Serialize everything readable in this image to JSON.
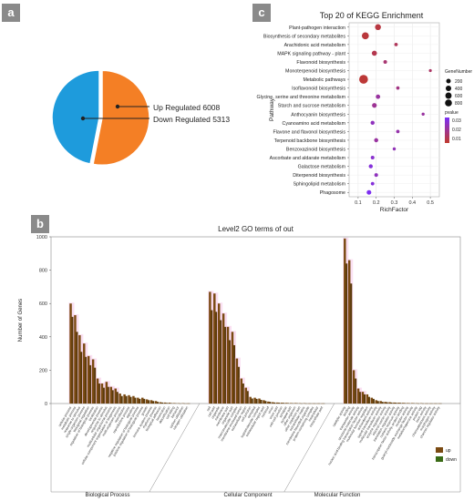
{
  "panels": {
    "a": "a",
    "b": "b",
    "c": "c"
  },
  "colors": {
    "up": "#f47f25",
    "down": "#1e9bdc",
    "bar_up": "#7a4a12",
    "bar_down": "#3a6b16",
    "pvalue_high": "#c0392b",
    "pvalue_low": "#7b2ff7"
  },
  "chart_data": [
    {
      "type": "pie",
      "panel": "a",
      "labels": [
        "Up Regulated",
        "Down Regulated"
      ],
      "values": [
        6008,
        5313
      ],
      "label_texts": [
        "Up Regulated 6008",
        "Down Regulated 5313"
      ],
      "colors": [
        "#f47f25",
        "#1e9bdc"
      ]
    },
    {
      "type": "scatter",
      "panel": "c",
      "title": "Top 20 of KEGG Enrichment",
      "xlabel": "RichFactor",
      "ylabel": "Pathway",
      "xlim": [
        0.05,
        0.55
      ],
      "xticks": [
        0.1,
        0.2,
        0.3,
        0.4,
        0.5
      ],
      "grid": true,
      "legend_size_title": "GeneNumber",
      "legend_size_values": [
        200,
        400,
        600,
        800
      ],
      "legend_color_title": "pvalue",
      "legend_color_ticks": [
        "0.03",
        "0.02",
        "0.01"
      ],
      "categories": [
        "Plant-pathogen interaction",
        "Biosynthesis of secondary metabolites",
        "Arachidonic acid metabolism",
        "MAPK signaling pathway - plant",
        "Flavonoid biosynthesis",
        "Monoterpenoid biosynthesis",
        "Metabolic pathways",
        "Isoflavonoid biosynthesis",
        "Glycine, serine and threonine metabolism",
        "Starch and sucrose metabolism",
        "Anthocyanin biosynthesis",
        "Cyanoamino acid metabolism",
        "Flavone and flavonol biosynthesis",
        "Terpenoid backbone biosynthesis",
        "Benzoxazinoid biosynthesis",
        "Ascorbate and aldarate metabolism",
        "Galactose metabolism",
        "Diterpenoid biosynthesis",
        "Sphingolipid metabolism",
        "Phagosome"
      ],
      "richfactor": [
        0.21,
        0.14,
        0.31,
        0.19,
        0.25,
        0.5,
        0.13,
        0.32,
        0.21,
        0.19,
        0.46,
        0.18,
        0.32,
        0.2,
        0.3,
        0.18,
        0.17,
        0.2,
        0.18,
        0.16
      ],
      "genenumber": [
        260,
        420,
        30,
        160,
        40,
        10,
        800,
        25,
        90,
        120,
        15,
        60,
        30,
        70,
        15,
        40,
        60,
        40,
        30,
        110
      ],
      "pvalue": [
        0.004,
        0.003,
        0.008,
        0.006,
        0.012,
        0.01,
        0.002,
        0.015,
        0.02,
        0.018,
        0.02,
        0.025,
        0.022,
        0.02,
        0.024,
        0.028,
        0.03,
        0.025,
        0.03,
        0.034
      ]
    },
    {
      "type": "bar",
      "panel": "b",
      "title": "Level2 GO terms of out",
      "ylabel": "Number of Genes",
      "ylim": [
        0,
        1000
      ],
      "yticks": [
        0,
        200,
        400,
        600,
        800,
        1000
      ],
      "groups": [
        {
          "name": "Biological Process",
          "count": 27
        },
        {
          "name": "Cellular Component",
          "count": 26
        },
        {
          "name": "Molecular Function",
          "count": 22
        }
      ],
      "categories": [
        "cellular process",
        "metabolic process",
        "response to stimulus",
        "single-organism process",
        "biological regulation",
        "regulation of biological process",
        "localization",
        "developmental process",
        "response to stimulus",
        "multicellular organismal process",
        "cellular component organization or biogenesis",
        "multi-organism process",
        "reproduction",
        "reproductive process",
        "signaling",
        "negative regulation of biological process",
        "positive regulation of biological process",
        "growth",
        "immune system process",
        "rhythmic process",
        "biological adhesion",
        "locomotion",
        "detoxification",
        "cell killing",
        "behavior",
        "carbon utilization",
        "nitrogen utilization",
        "cell",
        "cell part",
        "organelle",
        "membrane",
        "membrane part",
        "organelle part",
        "macromolecular complex",
        "membrane-enclosed lumen",
        "extracellular region",
        "cell junction",
        "symplast",
        "supramolecular complex",
        "extracellular region part",
        "nucleoid",
        "virion",
        "virion part",
        "cell-cell junction",
        "synapse",
        "synapse part",
        "other organism",
        "other organism part",
        "extracellular matrix",
        "membrane-bounded organelle",
        "protein-containing complex",
        "intracellular",
        "intracellular part",
        "catalytic activity",
        "binding",
        "transporter activity",
        "structural molecule activity",
        "nucleic acid binding transcription factor activity",
        "molecular function regulator",
        "antioxidant activity",
        "signal transducer activity",
        "molecular transducer activity",
        "enzyme regulator activity",
        "electron carrier activity",
        "translation regulator activity",
        "nutrient reservoir activity",
        "transcription factor activity, protein binding",
        "receptor activity",
        "guanyl-nucleotide exchange factor activity",
        "metallochaperone activity",
        "protein tag",
        "toxin activity",
        "chemoattractant activity",
        "morphogen activity",
        "channel regulator activity"
      ],
      "series": [
        {
          "name": "up",
          "values": [
            600,
            530,
            410,
            360,
            285,
            265,
            150,
            120,
            130,
            100,
            90,
            60,
            55,
            50,
            45,
            35,
            35,
            25,
            20,
            15,
            8,
            6,
            5,
            3,
            2,
            2,
            1,
            670,
            660,
            600,
            540,
            460,
            430,
            270,
            150,
            95,
            40,
            35,
            30,
            20,
            12,
            8,
            6,
            5,
            4,
            3,
            3,
            2,
            2,
            1,
            1,
            1,
            1,
            990,
            860,
            200,
            90,
            70,
            55,
            35,
            20,
            15,
            10,
            8,
            6,
            5,
            4,
            3,
            3,
            2,
            2,
            1,
            1,
            1,
            1
          ]
        },
        {
          "name": "down",
          "values": [
            520,
            430,
            310,
            280,
            230,
            215,
            120,
            95,
            100,
            80,
            70,
            45,
            45,
            40,
            35,
            28,
            28,
            20,
            15,
            10,
            6,
            4,
            3,
            2,
            1,
            1,
            1,
            560,
            550,
            500,
            460,
            380,
            350,
            220,
            120,
            75,
            30,
            28,
            22,
            15,
            10,
            6,
            5,
            4,
            3,
            2,
            2,
            1,
            1,
            1,
            1,
            1,
            1,
            840,
            720,
            150,
            70,
            55,
            40,
            28,
            15,
            10,
            8,
            6,
            5,
            4,
            3,
            2,
            2,
            1,
            1,
            1,
            1,
            1,
            1
          ]
        }
      ],
      "legend": [
        "up",
        "down"
      ]
    }
  ]
}
